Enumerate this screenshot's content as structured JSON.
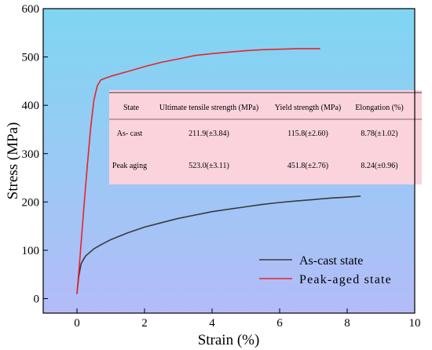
{
  "chart_data": {
    "type": "line",
    "xlabel": "Strain (%)",
    "ylabel": "Stress (MPa)",
    "xlim": [
      -1,
      10
    ],
    "ylim": [
      -30,
      600
    ],
    "x_ticks": [
      "0",
      "2",
      "4",
      "6",
      "8",
      "10"
    ],
    "y_ticks": [
      "0",
      "100",
      "200",
      "300",
      "400",
      "500",
      "600"
    ],
    "x_tick_values": [
      0,
      2,
      4,
      6,
      8,
      10
    ],
    "y_tick_values": [
      0,
      100,
      200,
      300,
      400,
      500,
      600
    ],
    "background_gradient": [
      "#7fd6f2",
      "#b4bcf8"
    ],
    "legend_position": "bottom-right",
    "series": [
      {
        "name": "As-cast state",
        "color": "#3a3a3a",
        "x": [
          0,
          0.05,
          0.12,
          0.25,
          0.5,
          0.75,
          1.0,
          1.5,
          2.0,
          2.5,
          3.0,
          3.5,
          4.0,
          4.5,
          5.0,
          5.5,
          6.0,
          6.5,
          7.0,
          7.5,
          8.0,
          8.4
        ],
        "y": [
          10,
          45,
          72,
          88,
          103,
          113,
          122,
          136,
          148,
          157,
          166,
          173,
          180,
          185,
          190,
          195,
          199,
          202,
          205,
          208,
          210,
          212
        ]
      },
      {
        "name": "Peak-aged state",
        "color": "#e8232b",
        "x": [
          0,
          0.1,
          0.2,
          0.3,
          0.4,
          0.5,
          0.6,
          0.7,
          0.8,
          1.0,
          1.5,
          2.0,
          2.5,
          3.0,
          3.5,
          4.0,
          4.5,
          5.0,
          5.5,
          6.0,
          6.5,
          7.0,
          7.2
        ],
        "y": [
          10,
          95,
          185,
          270,
          350,
          410,
          440,
          452,
          455,
          460,
          470,
          480,
          489,
          496,
          503,
          507,
          510,
          513,
          515,
          516,
          517,
          517,
          517
        ]
      }
    ],
    "table": {
      "headers": [
        "State",
        "Ultimate tensile strength (MPa)",
        "Yield strength (MPa)",
        "Elongation (%)"
      ],
      "rows": [
        [
          "As- cast",
          "211.9(±3.84)",
          "115.8(±2.60)",
          "8.78(±1.02)"
        ],
        [
          "Peak aging",
          "523.0(±3.11)",
          "451.8(±2.76)",
          "8.24(±0.96)"
        ]
      ],
      "background": "#fbd3dd"
    }
  }
}
